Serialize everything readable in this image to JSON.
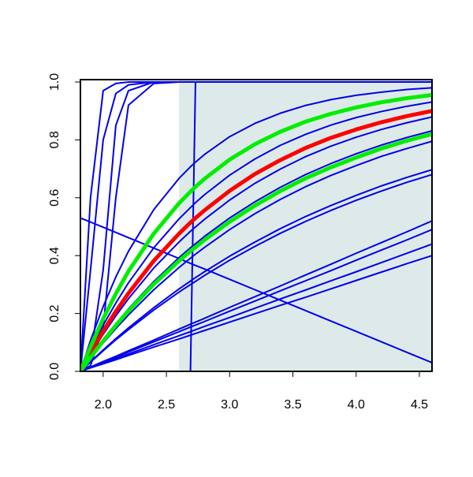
{
  "chart_data": {
    "type": "line",
    "xlim": [
      1.82,
      4.6
    ],
    "ylim": [
      0,
      1
    ],
    "xticks": [
      {
        "value": 2.0,
        "label": "2.0"
      },
      2.5,
      {
        "value": 3.0,
        "label": "3.0"
      },
      3.5,
      {
        "value": 4.0,
        "label": "4.0"
      },
      4.5
    ],
    "yticks": [
      {
        "value": 0,
        "label": "0.0"
      },
      {
        "value": 0.2,
        "label": "0.2"
      },
      {
        "value": 0.4,
        "label": "0.4"
      },
      {
        "value": 0.6,
        "label": "0.6"
      },
      {
        "value": 0.8,
        "label": "0.8"
      },
      {
        "value": 1.0,
        "label": "1.0"
      }
    ],
    "shaded_region": {
      "x": [
        2.6,
        4.6
      ],
      "color": "#deeaea"
    },
    "x": [
      1.82,
      1.9,
      2.0,
      2.1,
      2.2,
      2.4,
      2.6,
      2.69,
      2.73,
      2.8,
      3.0,
      3.2,
      3.4,
      3.6,
      3.8,
      4.0,
      4.2,
      4.4,
      4.6
    ],
    "series": [
      {
        "color": "#0000ee",
        "width": 2,
        "values": [
          0,
          0.6,
          0.97,
          0.995,
          1,
          1,
          1,
          1,
          1,
          1,
          1,
          1,
          1,
          1,
          1,
          1,
          1,
          1,
          1
        ]
      },
      {
        "color": "#0000ee",
        "width": 2,
        "values": [
          0,
          0.35,
          0.8,
          0.96,
          0.99,
          1,
          1,
          1,
          1,
          1,
          1,
          1,
          1,
          1,
          1,
          1,
          1,
          1,
          1
        ]
      },
      {
        "color": "#0000ee",
        "width": 2,
        "values": [
          0,
          0.05,
          0.35,
          0.85,
          0.97,
          1,
          1,
          1,
          1,
          1,
          1,
          1,
          1,
          1,
          1,
          1,
          1,
          1,
          1
        ]
      },
      {
        "color": "#0000ee",
        "width": 2,
        "values": [
          0,
          0.02,
          0.15,
          0.6,
          0.92,
          0.995,
          1,
          1,
          1,
          1,
          1,
          1,
          1,
          1,
          1,
          1,
          1,
          1,
          1
        ]
      },
      {
        "color": "#0000ee",
        "width": 2,
        "values": [
          0,
          0,
          0,
          0,
          0,
          0,
          0,
          0,
          1,
          1,
          1,
          1,
          1,
          1,
          1,
          1,
          1,
          1,
          1
        ]
      },
      {
        "color": "#0000ee",
        "width": 2,
        "values": [
          0.53,
          0.516,
          0.498,
          0.48,
          0.462,
          0.426,
          0.39,
          0.373,
          0.366,
          0.354,
          0.318,
          0.282,
          0.246,
          0.21,
          0.174,
          0.138,
          0.102,
          0.066,
          0.03
        ]
      },
      {
        "color": "#0000ee",
        "width": 2,
        "values": [
          0,
          0.107,
          0.224,
          0.326,
          0.415,
          0.559,
          0.667,
          0.707,
          0.723,
          0.749,
          0.811,
          0.857,
          0.892,
          0.919,
          0.939,
          0.954,
          0.965,
          0.974,
          0.98
        ]
      },
      {
        "color": "#0000ee",
        "width": 2,
        "values": [
          0,
          0.074,
          0.159,
          0.236,
          0.306,
          0.427,
          0.527,
          0.566,
          0.583,
          0.61,
          0.678,
          0.734,
          0.781,
          0.819,
          0.851,
          0.877,
          0.898,
          0.916,
          0.931
        ]
      },
      {
        "color": "#0000ee",
        "width": 2,
        "values": [
          0,
          0.059,
          0.128,
          0.192,
          0.251,
          0.357,
          0.447,
          0.484,
          0.499,
          0.525,
          0.592,
          0.65,
          0.699,
          0.742,
          0.778,
          0.809,
          0.836,
          0.859,
          0.879
        ]
      },
      {
        "color": "#0000ee",
        "width": 2,
        "values": [
          0,
          0.05,
          0.109,
          0.164,
          0.216,
          0.31,
          0.393,
          0.427,
          0.441,
          0.466,
          0.53,
          0.586,
          0.636,
          0.68,
          0.718,
          0.752,
          0.782,
          0.808,
          0.831
        ]
      },
      {
        "color": "#0000ee",
        "width": 2,
        "values": [
          0,
          0.045,
          0.098,
          0.148,
          0.195,
          0.282,
          0.359,
          0.391,
          0.405,
          0.428,
          0.49,
          0.545,
          0.594,
          0.638,
          0.677,
          0.711,
          0.743,
          0.77,
          0.795
        ]
      },
      {
        "color": "#0000ee",
        "width": 2,
        "values": [
          0,
          0.033,
          0.074,
          0.113,
          0.15,
          0.22,
          0.285,
          0.312,
          0.324,
          0.344,
          0.398,
          0.447,
          0.493,
          0.535,
          0.573,
          0.608,
          0.641,
          0.67,
          0.697
        ]
      },
      {
        "color": "#0000ee",
        "width": 2,
        "values": [
          0,
          0.032,
          0.071,
          0.109,
          0.144,
          0.212,
          0.274,
          0.3,
          0.311,
          0.331,
          0.384,
          0.432,
          0.477,
          0.518,
          0.556,
          0.591,
          0.623,
          0.653,
          0.68
        ]
      },
      {
        "color": "#0000ee",
        "width": 2,
        "values": [
          0,
          0.015,
          0.034,
          0.052,
          0.071,
          0.108,
          0.146,
          0.163,
          0.17,
          0.183,
          0.221,
          0.258,
          0.295,
          0.333,
          0.37,
          0.408,
          0.445,
          0.482,
          0.52
        ]
      },
      {
        "color": "#0000ee",
        "width": 2,
        "values": [
          0,
          0.014,
          0.032,
          0.049,
          0.067,
          0.102,
          0.137,
          0.153,
          0.16,
          0.172,
          0.208,
          0.243,
          0.278,
          0.313,
          0.348,
          0.384,
          0.419,
          0.454,
          0.49
        ]
      },
      {
        "color": "#0000ee",
        "width": 2,
        "values": [
          0,
          0.013,
          0.028,
          0.044,
          0.06,
          0.092,
          0.123,
          0.137,
          0.144,
          0.155,
          0.186,
          0.218,
          0.25,
          0.281,
          0.313,
          0.344,
          0.376,
          0.408,
          0.44
        ]
      },
      {
        "color": "#0000ee",
        "width": 2,
        "values": [
          0,
          0.012,
          0.026,
          0.04,
          0.055,
          0.084,
          0.112,
          0.125,
          0.131,
          0.141,
          0.17,
          0.199,
          0.228,
          0.256,
          0.285,
          0.314,
          0.343,
          0.372,
          0.4
        ]
      },
      {
        "color": "#ff0000",
        "width": 5,
        "values": [
          0,
          0.064,
          0.139,
          0.207,
          0.27,
          0.382,
          0.476,
          0.514,
          0.53,
          0.556,
          0.624,
          0.682,
          0.73,
          0.772,
          0.807,
          0.836,
          0.861,
          0.882,
          0.9
        ]
      },
      {
        "color": "#00ee00",
        "width": 5,
        "values": [
          0,
          0.085,
          0.182,
          0.268,
          0.346,
          0.476,
          0.581,
          0.621,
          0.638,
          0.665,
          0.732,
          0.785,
          0.828,
          0.863,
          0.89,
          0.912,
          0.93,
          0.944,
          0.955
        ]
      },
      {
        "color": "#00ee00",
        "width": 5,
        "values": [
          0,
          0.048,
          0.105,
          0.159,
          0.209,
          0.301,
          0.382,
          0.416,
          0.429,
          0.454,
          0.517,
          0.573,
          0.623,
          0.667,
          0.705,
          0.739,
          0.77,
          0.797,
          0.82
        ]
      }
    ]
  }
}
